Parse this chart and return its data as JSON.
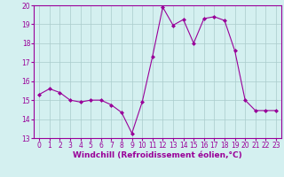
{
  "x": [
    0,
    1,
    2,
    3,
    4,
    5,
    6,
    7,
    8,
    9,
    10,
    11,
    12,
    13,
    14,
    15,
    16,
    17,
    18,
    19,
    20,
    21,
    22,
    23
  ],
  "y": [
    15.3,
    15.6,
    15.4,
    15.0,
    14.9,
    15.0,
    15.0,
    14.75,
    14.35,
    13.25,
    14.9,
    17.3,
    19.9,
    18.95,
    19.25,
    18.0,
    19.3,
    19.4,
    19.2,
    17.6,
    15.0,
    14.45,
    14.45,
    14.45
  ],
  "line_color": "#990099",
  "marker": "D",
  "marker_size": 2.0,
  "bg_color": "#d4f0f0",
  "grid_color": "#aacccc",
  "xlabel": "Windchill (Refroidissement éolien,°C)",
  "xlim": [
    -0.5,
    23.5
  ],
  "ylim": [
    13,
    20
  ],
  "yticks": [
    13,
    14,
    15,
    16,
    17,
    18,
    19,
    20
  ],
  "xticks": [
    0,
    1,
    2,
    3,
    4,
    5,
    6,
    7,
    8,
    9,
    10,
    11,
    12,
    13,
    14,
    15,
    16,
    17,
    18,
    19,
    20,
    21,
    22,
    23
  ],
  "label_color": "#990099",
  "tick_color": "#990099",
  "axis_color": "#990099",
  "tick_fontsize": 5.5,
  "xlabel_fontsize": 6.5
}
